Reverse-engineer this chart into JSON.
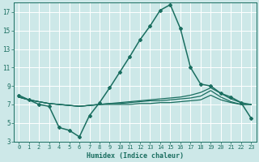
{
  "xlabel": "Humidex (Indice chaleur)",
  "bg_color": "#cde8e8",
  "grid_color": "#b0d8d8",
  "line_color": "#1a6e60",
  "xlim": [
    -0.5,
    23.5
  ],
  "ylim": [
    3,
    18
  ],
  "xticks": [
    0,
    1,
    2,
    3,
    4,
    5,
    6,
    7,
    8,
    9,
    10,
    11,
    12,
    13,
    14,
    15,
    16,
    17,
    18,
    19,
    20,
    21,
    22,
    23
  ],
  "yticks": [
    3,
    5,
    7,
    9,
    11,
    13,
    15,
    17
  ],
  "series": [
    {
      "x": [
        0,
        1,
        2,
        3,
        4,
        5,
        6,
        7,
        8,
        9,
        10,
        11,
        12,
        13,
        14,
        15,
        16,
        17,
        18,
        19,
        20,
        21,
        22,
        23
      ],
      "y": [
        8.0,
        7.5,
        7.0,
        6.8,
        4.5,
        4.2,
        3.5,
        5.8,
        7.2,
        8.8,
        10.5,
        12.2,
        14.0,
        15.5,
        17.2,
        17.8,
        15.2,
        11.0,
        9.2,
        9.0,
        8.2,
        7.8,
        7.2,
        5.5
      ],
      "marker": "D",
      "markersize": 2.0,
      "linewidth": 1.1
    },
    {
      "x": [
        0,
        1,
        2,
        3,
        4,
        5,
        6,
        7,
        8,
        9,
        10,
        11,
        12,
        13,
        14,
        15,
        16,
        17,
        18,
        19,
        20,
        21,
        22,
        23
      ],
      "y": [
        7.8,
        7.5,
        7.3,
        7.1,
        7.0,
        6.9,
        6.8,
        6.9,
        7.0,
        7.1,
        7.2,
        7.3,
        7.4,
        7.5,
        7.6,
        7.7,
        7.8,
        8.0,
        8.3,
        8.8,
        8.2,
        7.6,
        7.2,
        7.0
      ],
      "marker": null,
      "markersize": 0,
      "linewidth": 0.9
    },
    {
      "x": [
        0,
        1,
        2,
        3,
        4,
        5,
        6,
        7,
        8,
        9,
        10,
        11,
        12,
        13,
        14,
        15,
        16,
        17,
        18,
        19,
        20,
        21,
        22,
        23
      ],
      "y": [
        7.8,
        7.5,
        7.3,
        7.1,
        7.0,
        6.9,
        6.8,
        6.9,
        7.0,
        7.1,
        7.1,
        7.2,
        7.3,
        7.4,
        7.4,
        7.5,
        7.6,
        7.7,
        7.9,
        8.5,
        7.8,
        7.3,
        7.0,
        7.0
      ],
      "marker": null,
      "markersize": 0,
      "linewidth": 0.9
    },
    {
      "x": [
        0,
        1,
        2,
        3,
        4,
        5,
        6,
        7,
        8,
        9,
        10,
        11,
        12,
        13,
        14,
        15,
        16,
        17,
        18,
        19,
        20,
        21,
        22,
        23
      ],
      "y": [
        7.8,
        7.5,
        7.3,
        7.1,
        7.0,
        6.9,
        6.8,
        6.9,
        7.0,
        7.0,
        7.0,
        7.0,
        7.1,
        7.1,
        7.2,
        7.2,
        7.3,
        7.4,
        7.5,
        8.0,
        7.5,
        7.2,
        7.0,
        7.0
      ],
      "marker": null,
      "markersize": 0,
      "linewidth": 0.9
    }
  ]
}
